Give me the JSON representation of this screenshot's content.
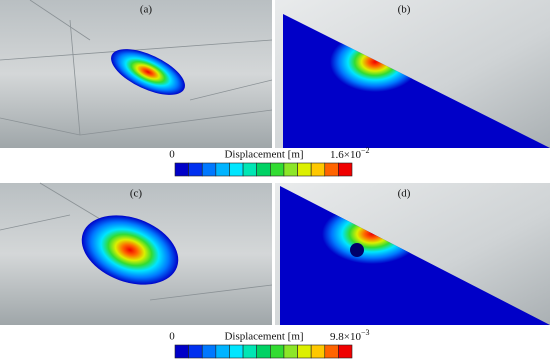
{
  "panels": [
    {
      "label": "(a)"
    },
    {
      "label": "(b)"
    },
    {
      "label": "(c)"
    },
    {
      "label": "(d)"
    }
  ],
  "colorbars": [
    {
      "min_label": "0",
      "title": "Displacement [m]",
      "max_mantissa": "1.6×10",
      "max_exponent": "−2"
    },
    {
      "min_label": "0",
      "title": "Displacement [m]",
      "max_mantissa": "9.8×10",
      "max_exponent": "−3"
    }
  ],
  "colors": [
    "#0000c8",
    "#0030f0",
    "#0078ff",
    "#00b4ff",
    "#00e6ff",
    "#00e6b4",
    "#00d264",
    "#32dc32",
    "#8ce628",
    "#dcf000",
    "#ffc800",
    "#ff6400",
    "#f00000"
  ]
}
